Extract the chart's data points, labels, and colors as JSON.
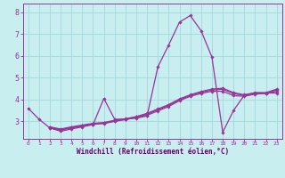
{
  "background_color": "#c8eef0",
  "grid_color": "#a0d8dc",
  "line_color": "#993399",
  "marker_color": "#993399",
  "xlabel": "Windchill (Refroidissement éolien,°C)",
  "xlabel_color": "#660066",
  "xlim": [
    -0.5,
    23.5
  ],
  "ylim": [
    2.2,
    8.4
  ],
  "xticks": [
    0,
    1,
    2,
    3,
    4,
    5,
    6,
    7,
    8,
    9,
    10,
    11,
    12,
    13,
    14,
    15,
    16,
    17,
    18,
    19,
    20,
    21,
    22,
    23
  ],
  "yticks": [
    3,
    4,
    5,
    6,
    7,
    8
  ],
  "series": [
    {
      "x": [
        0,
        1,
        2,
        3,
        4,
        5,
        6,
        7,
        8,
        9,
        10,
        11,
        12,
        13,
        14,
        15,
        16,
        17,
        18,
        19,
        20,
        21,
        22,
        23
      ],
      "y": [
        3.6,
        3.1,
        2.7,
        2.55,
        2.65,
        2.75,
        2.85,
        4.05,
        3.1,
        3.1,
        3.15,
        3.25,
        5.5,
        6.5,
        7.55,
        7.85,
        7.15,
        5.95,
        2.5,
        3.5,
        4.2,
        4.3,
        4.3,
        4.3
      ]
    },
    {
      "x": [
        2,
        3,
        4,
        5,
        6,
        7,
        8,
        9,
        10,
        11,
        12,
        13,
        14,
        15,
        16,
        17,
        18,
        19,
        20,
        21,
        22,
        23
      ],
      "y": [
        2.7,
        2.6,
        2.7,
        2.78,
        2.87,
        2.9,
        3.0,
        3.08,
        3.18,
        3.28,
        3.48,
        3.68,
        3.95,
        4.15,
        4.28,
        4.38,
        4.38,
        4.18,
        4.15,
        4.25,
        4.28,
        4.38
      ]
    },
    {
      "x": [
        2,
        3,
        4,
        5,
        6,
        7,
        8,
        9,
        10,
        11,
        12,
        13,
        14,
        15,
        16,
        17,
        18,
        19,
        20,
        21,
        22,
        23
      ],
      "y": [
        2.75,
        2.65,
        2.75,
        2.83,
        2.91,
        2.95,
        3.05,
        3.12,
        3.22,
        3.37,
        3.57,
        3.77,
        4.03,
        4.22,
        4.37,
        4.48,
        4.52,
        4.32,
        4.22,
        4.32,
        4.32,
        4.48
      ]
    },
    {
      "x": [
        2,
        3,
        4,
        5,
        6,
        7,
        8,
        9,
        10,
        11,
        12,
        13,
        14,
        15,
        16,
        17,
        18,
        19,
        20,
        21,
        22,
        23
      ],
      "y": [
        2.72,
        2.62,
        2.72,
        2.8,
        2.89,
        2.92,
        3.02,
        3.1,
        3.2,
        3.33,
        3.53,
        3.73,
        3.99,
        4.19,
        4.33,
        4.44,
        4.47,
        4.27,
        4.19,
        4.29,
        4.29,
        4.44
      ]
    }
  ]
}
